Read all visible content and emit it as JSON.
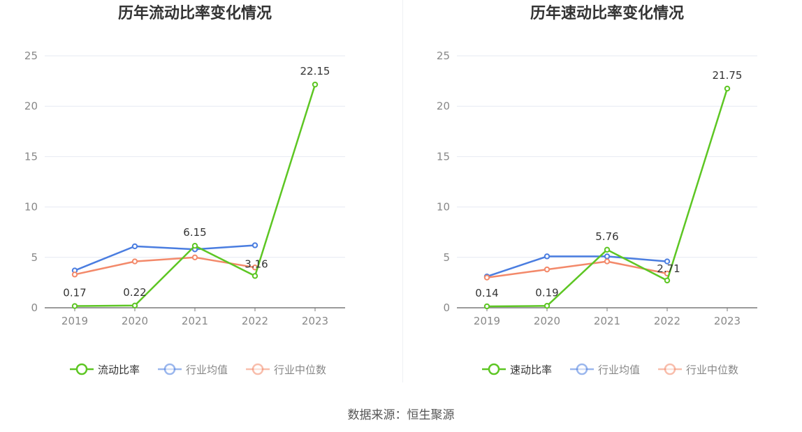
{
  "source_label": "数据来源：恒生聚源",
  "colors": {
    "primary": "#5dc623",
    "average": "#4a7de0",
    "median": "#f3896a"
  },
  "chart_data": [
    {
      "type": "line",
      "title": "历年流动比率变化情况",
      "categories": [
        "2019",
        "2020",
        "2021",
        "2022",
        "2023"
      ],
      "ylim": [
        0,
        25
      ],
      "yticks": [
        0,
        5,
        10,
        15,
        20,
        25
      ],
      "grid": true,
      "legend_position": "bottom",
      "series": [
        {
          "name": "流动比率",
          "values": [
            0.17,
            0.22,
            6.15,
            3.16,
            22.15
          ],
          "labels": [
            "0.17",
            "0.22",
            "6.15",
            "3.16",
            "22.15"
          ]
        },
        {
          "name": "行业均值",
          "values": [
            3.7,
            6.1,
            5.8,
            6.2,
            null
          ]
        },
        {
          "name": "行业中位数",
          "values": [
            3.3,
            4.6,
            5.0,
            4.0,
            null
          ]
        }
      ]
    },
    {
      "type": "line",
      "title": "历年速动比率变化情况",
      "categories": [
        "2019",
        "2020",
        "2021",
        "2022",
        "2023"
      ],
      "ylim": [
        0,
        25
      ],
      "yticks": [
        0,
        5,
        10,
        15,
        20,
        25
      ],
      "grid": true,
      "legend_position": "bottom",
      "series": [
        {
          "name": "速动比率",
          "values": [
            0.14,
            0.19,
            5.76,
            2.71,
            21.75
          ],
          "labels": [
            "0.14",
            "0.19",
            "5.76",
            "2.71",
            "21.75"
          ]
        },
        {
          "name": "行业均值",
          "values": [
            3.1,
            5.1,
            5.1,
            4.6,
            null
          ]
        },
        {
          "name": "行业中位数",
          "values": [
            3.0,
            3.8,
            4.6,
            3.4,
            null
          ]
        }
      ]
    }
  ]
}
